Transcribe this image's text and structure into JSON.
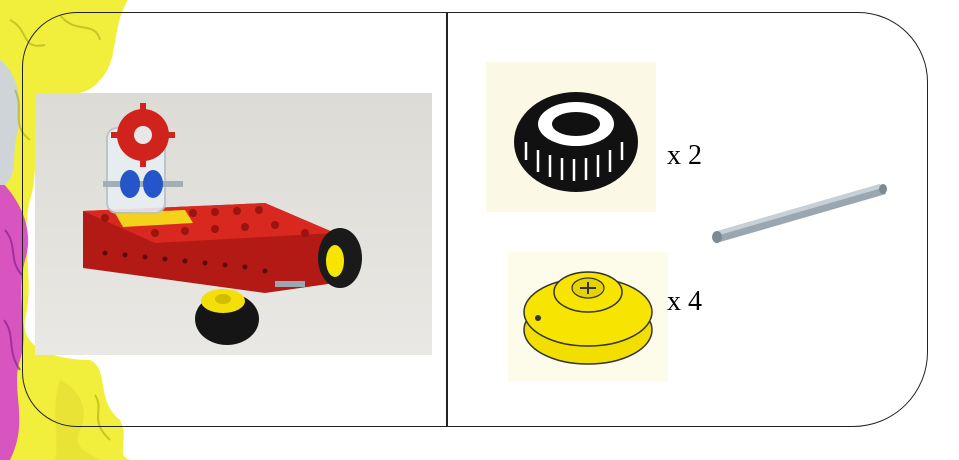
{
  "parts": [
    {
      "name": "tire",
      "quantity_label": "x 2"
    },
    {
      "name": "wheel-hub",
      "quantity_label": "x 4"
    },
    {
      "name": "axle",
      "quantity_label": ""
    }
  ],
  "colors": {
    "brick_red": "#c8201b",
    "hub_yellow": "#f7e400",
    "axle_grey": "#9aa7b0",
    "gear_blue": "#2456c9",
    "frame_line": "#222222",
    "decor_yellow": "#f2ee3c",
    "decor_magenta": "#d43ad6"
  }
}
